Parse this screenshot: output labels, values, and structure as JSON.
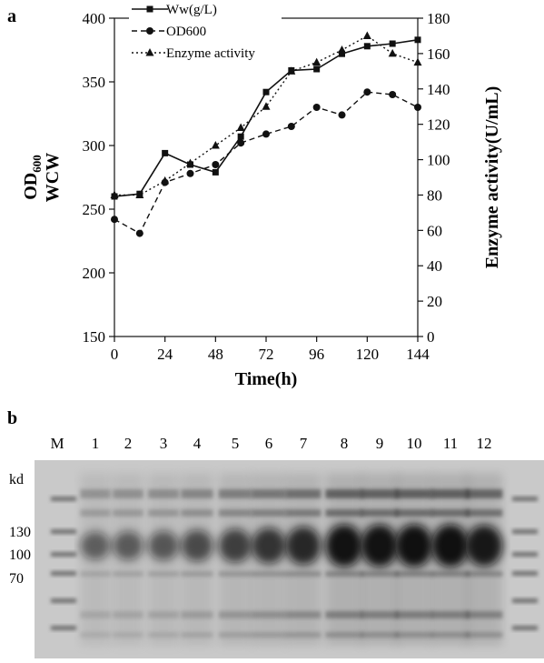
{
  "panel_a": {
    "label": "a"
  },
  "panel_b": {
    "label": "b",
    "unit_label": "kd",
    "lanes": [
      "M",
      "1",
      "2",
      "3",
      "4",
      "5",
      "6",
      "7",
      "8",
      "9",
      "10",
      "11",
      "12"
    ],
    "marker_labels": [
      "130",
      "100",
      "70"
    ],
    "band_intensity": [
      0.28,
      0.32,
      0.35,
      0.45,
      0.55,
      0.65,
      0.75,
      0.95,
      0.95,
      0.97,
      0.97,
      0.9
    ]
  },
  "chart_data": {
    "type": "line",
    "x": [
      0,
      12,
      24,
      36,
      48,
      60,
      72,
      84,
      96,
      108,
      120,
      132,
      144
    ],
    "xticks": [
      0,
      24,
      48,
      72,
      96,
      120,
      144
    ],
    "xlabel": "Time(h)",
    "xlim": [
      0,
      144
    ],
    "ylabel_left_lines": [
      "OD",
      "600",
      "WCW"
    ],
    "ylim_left": [
      150,
      400
    ],
    "yticks_left": [
      150,
      200,
      250,
      300,
      350,
      400
    ],
    "ylabel_right": "Enzyme activity(U/mL)",
    "ylim_right": [
      0,
      180
    ],
    "yticks_right": [
      0,
      20,
      40,
      60,
      80,
      100,
      120,
      140,
      160,
      180
    ],
    "legend_position": "top-center",
    "series": [
      {
        "name": "Ww(g/L)",
        "axis": "left",
        "marker": "square",
        "dash": "solid",
        "values": [
          260,
          262,
          294,
          285,
          279,
          307,
          342,
          359,
          360,
          372,
          378,
          380,
          383
        ]
      },
      {
        "name": "OD600",
        "axis": "left",
        "marker": "circle",
        "dash": "dashed",
        "values": [
          242,
          231,
          271,
          278,
          285,
          302,
          309,
          315,
          330,
          324,
          342,
          340,
          330
        ]
      },
      {
        "name": "Enzyme activity",
        "axis": "right",
        "marker": "triangle",
        "dash": "dotted",
        "values": [
          80,
          80,
          88,
          98,
          108,
          118,
          130,
          150,
          155,
          162,
          170,
          160,
          155
        ]
      }
    ]
  }
}
